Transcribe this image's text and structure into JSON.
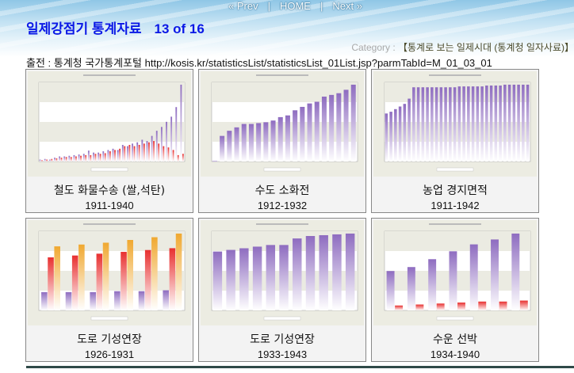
{
  "nav": {
    "prev": "« Prev",
    "home": "HOME",
    "next": "Next »",
    "sep": "|"
  },
  "title": {
    "text": "일제강점기 통계자료",
    "counter": "13 of 16"
  },
  "category": {
    "label": "Category : ",
    "value": "【통계로 보는 일제시대 (통계청 일자사료)】"
  },
  "source": "출전 : 통계청 국가통계포털 http://kosis.kr/statisticsList/statisticsList_01List.jsp?parmTabId=M_01_03_01",
  "cards": [
    {
      "title": "철도 화물수송 (쌀,석탄)",
      "years": "1911-1940"
    },
    {
      "title": "수도 소화전",
      "years": "1912-1932"
    },
    {
      "title": "농업 경지면적",
      "years": "1911-1942"
    },
    {
      "title": "도로 기성연장",
      "years": "1926-1931"
    },
    {
      "title": "도로 기성연장",
      "years": "1933-1943"
    },
    {
      "title": "수운 선박",
      "years": "1934-1940"
    }
  ],
  "colors": {
    "purple": "#8e6cc0",
    "red": "#e83030",
    "orange": "#f0a830",
    "title_blue": "#0a18e6"
  }
}
